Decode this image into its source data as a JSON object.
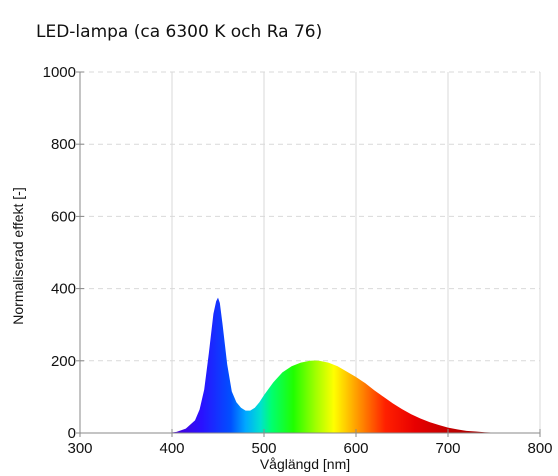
{
  "chart_data": {
    "type": "area",
    "title": "LED-lampa (ca 6300 K och Ra 76)",
    "xlabel": "Våglängd [nm]",
    "ylabel": "Normaliserad effekt [-]",
    "xlim": [
      300,
      800
    ],
    "ylim": [
      0,
      1000
    ],
    "x_ticks": [
      "300",
      "400",
      "500",
      "600",
      "700",
      "800"
    ],
    "y_ticks": [
      "0",
      "200",
      "400",
      "600",
      "800",
      "1000"
    ],
    "grid": true,
    "fill": "visible-spectrum gradient",
    "series": [
      {
        "x": [
          395,
          405,
          415,
          425,
          430,
          435,
          440,
          445,
          448,
          450,
          452,
          455,
          460,
          465,
          470,
          475,
          480,
          485,
          490,
          495,
          500,
          510,
          520,
          530,
          540,
          550,
          555,
          560,
          570,
          580,
          590,
          600,
          610,
          620,
          630,
          640,
          650,
          660,
          670,
          680,
          690,
          700,
          710,
          720,
          730,
          740,
          750,
          760,
          770,
          780
        ],
        "y": [
          0,
          3,
          12,
          35,
          65,
          120,
          220,
          330,
          365,
          375,
          360,
          300,
          190,
          115,
          85,
          70,
          62,
          62,
          70,
          85,
          105,
          140,
          168,
          185,
          195,
          200,
          201,
          200,
          195,
          185,
          170,
          155,
          138,
          118,
          100,
          82,
          66,
          52,
          40,
          30,
          22,
          15,
          10,
          6,
          4,
          2,
          1,
          0.5,
          0.2,
          0
        ]
      }
    ]
  }
}
